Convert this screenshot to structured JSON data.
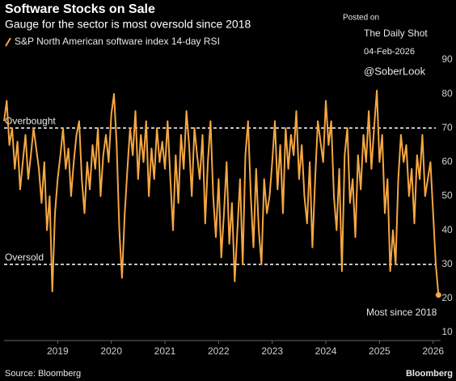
{
  "chart_data": {
    "type": "line",
    "title": "Software Stocks on Sale",
    "subtitle": "Gauge for the sector is most oversold since 2018",
    "source": "Source: Bloomberg",
    "brand": "Bloomberg",
    "watermark": [
      "Posted on",
      "The Daily Shot",
      "04-Feb-2026",
      "@SoberLook"
    ],
    "series": [
      {
        "name": "S&P North American software index 14-day RSI",
        "color": "#f5a742",
        "x": [
          2018.0,
          2018.05,
          2018.1,
          2018.15,
          2018.2,
          2018.25,
          2018.3,
          2018.35,
          2018.4,
          2018.45,
          2018.5,
          2018.55,
          2018.6,
          2018.65,
          2018.7,
          2018.75,
          2018.8,
          2018.85,
          2018.9,
          2018.95,
          2019.0,
          2019.05,
          2019.1,
          2019.15,
          2019.2,
          2019.25,
          2019.3,
          2019.35,
          2019.4,
          2019.45,
          2019.5,
          2019.55,
          2019.6,
          2019.65,
          2019.7,
          2019.75,
          2019.8,
          2019.85,
          2019.9,
          2019.95,
          2020.0,
          2020.05,
          2020.1,
          2020.15,
          2020.2,
          2020.25,
          2020.3,
          2020.35,
          2020.4,
          2020.45,
          2020.5,
          2020.55,
          2020.6,
          2020.65,
          2020.7,
          2020.75,
          2020.8,
          2020.85,
          2020.9,
          2020.95,
          2021.0,
          2021.05,
          2021.1,
          2021.15,
          2021.2,
          2021.25,
          2021.3,
          2021.35,
          2021.4,
          2021.45,
          2021.5,
          2021.55,
          2021.6,
          2021.65,
          2021.7,
          2021.75,
          2021.8,
          2021.85,
          2021.9,
          2021.95,
          2022.0,
          2022.05,
          2022.1,
          2022.15,
          2022.2,
          2022.25,
          2022.3,
          2022.35,
          2022.4,
          2022.45,
          2022.5,
          2022.55,
          2022.6,
          2022.65,
          2022.7,
          2022.75,
          2022.8,
          2022.85,
          2022.9,
          2022.95,
          2023.0,
          2023.05,
          2023.1,
          2023.15,
          2023.2,
          2023.25,
          2023.3,
          2023.35,
          2023.4,
          2023.45,
          2023.5,
          2023.55,
          2023.6,
          2023.65,
          2023.7,
          2023.75,
          2023.8,
          2023.85,
          2023.9,
          2023.95,
          2024.0,
          2024.05,
          2024.1,
          2024.15,
          2024.2,
          2024.25,
          2024.3,
          2024.35,
          2024.4,
          2024.45,
          2024.5,
          2024.55,
          2024.6,
          2024.65,
          2024.7,
          2024.75,
          2024.8,
          2024.85,
          2024.9,
          2024.95,
          2025.0,
          2025.05,
          2025.1,
          2025.15,
          2025.2,
          2025.25,
          2025.3,
          2025.35,
          2025.4,
          2025.45,
          2025.5,
          2025.55,
          2025.6,
          2025.65,
          2025.7,
          2025.75,
          2025.8,
          2025.85,
          2025.9,
          2025.95,
          2026.0,
          2026.05,
          2026.1
        ],
        "values": [
          72,
          78,
          65,
          70,
          58,
          66,
          52,
          60,
          68,
          55,
          62,
          70,
          64,
          58,
          48,
          60,
          40,
          50,
          22,
          45,
          55,
          62,
          70,
          58,
          64,
          50,
          60,
          68,
          72,
          55,
          45,
          60,
          52,
          65,
          58,
          70,
          50,
          62,
          68,
          60,
          74,
          80,
          65,
          40,
          26,
          45,
          58,
          70,
          62,
          75,
          55,
          68,
          60,
          72,
          50,
          64,
          55,
          70,
          60,
          66,
          58,
          72,
          55,
          40,
          62,
          48,
          68,
          58,
          75,
          65,
          50,
          70,
          62,
          55,
          68,
          42,
          60,
          72,
          50,
          38,
          55,
          32,
          45,
          60,
          36,
          48,
          25,
          40,
          55,
          30,
          62,
          72,
          50,
          35,
          58,
          40,
          30,
          55,
          45,
          50,
          60,
          72,
          52,
          65,
          45,
          70,
          58,
          68,
          62,
          75,
          55,
          65,
          50,
          42,
          60,
          35,
          55,
          72,
          66,
          60,
          78,
          65,
          72,
          50,
          40,
          58,
          28,
          62,
          70,
          48,
          55,
          38,
          62,
          52,
          68,
          60,
          75,
          58,
          70,
          81,
          60,
          68,
          45,
          55,
          28,
          40,
          30,
          55,
          68,
          60,
          65,
          50,
          58,
          42,
          62,
          55,
          68,
          50,
          55,
          60,
          45,
          30,
          21
        ]
      }
    ],
    "hlines": [
      {
        "value": 70,
        "label": "Overbought"
      },
      {
        "value": 30,
        "label": "Oversold"
      }
    ],
    "end_annotation": "Most since 2018",
    "xlim": [
      2018,
      2026.14
    ],
    "xticks": [
      2019,
      2020,
      2021,
      2022,
      2023,
      2024,
      2025,
      2026
    ],
    "ylim": [
      10,
      90
    ],
    "yticks": [
      10,
      20,
      30,
      40,
      50,
      60,
      70,
      80,
      90
    ],
    "grid": false
  }
}
